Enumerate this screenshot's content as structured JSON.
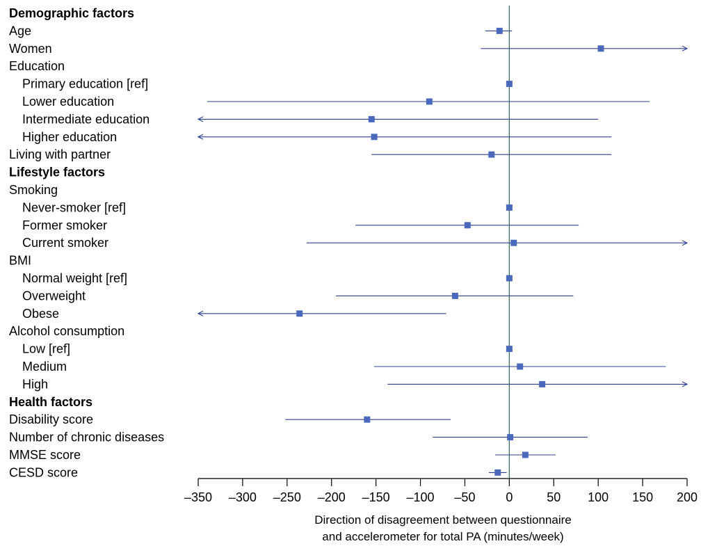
{
  "chart_data": {
    "type": "forest",
    "xlabel_line1": "Direction of disagreement between questionnaire",
    "xlabel_line2": "and accelerometer for total PA (minutes/week)",
    "xlim": [
      -350,
      200
    ],
    "xticks": [
      -350,
      -300,
      -250,
      -200,
      -150,
      -100,
      -50,
      0,
      50,
      100,
      150,
      200
    ],
    "xtick_labels": [
      "–350",
      "–300",
      "–250",
      "–200",
      "–150",
      "–100",
      "–50",
      "0",
      "50",
      "100",
      "150",
      "200"
    ],
    "colors": {
      "marker": "#4a69bd",
      "ci_line": "#2b3f8f",
      "zero_line": "#3d6b5c",
      "axis": "#000000"
    },
    "rows": [
      {
        "label": "Demographic factors",
        "header": true
      },
      {
        "label": "Age",
        "indent": 0,
        "est": -11,
        "lo": -27,
        "hi": 3
      },
      {
        "label": "Women",
        "indent": 0,
        "est": 103,
        "lo": -32,
        "hi": 200,
        "hi_arrow": true
      },
      {
        "label": "Education",
        "indent": 0
      },
      {
        "label": "Primary education [ref]",
        "indent": 1,
        "est": 0,
        "lo": null,
        "hi": null
      },
      {
        "label": "Lower education",
        "indent": 1,
        "est": -90,
        "lo": -340,
        "hi": 158
      },
      {
        "label": "Intermediate education",
        "indent": 1,
        "est": -155,
        "lo": -350,
        "hi": 100,
        "lo_arrow": true
      },
      {
        "label": "Higher education",
        "indent": 1,
        "est": -152,
        "lo": -350,
        "hi": 115,
        "lo_arrow": true
      },
      {
        "label": "Living with partner",
        "indent": 0,
        "est": -20,
        "lo": -155,
        "hi": 115
      },
      {
        "label": "Lifestyle factors",
        "header": true
      },
      {
        "label": "Smoking",
        "indent": 0
      },
      {
        "label": "Never-smoker [ref]",
        "indent": 1,
        "est": 0,
        "lo": null,
        "hi": null
      },
      {
        "label": "Former smoker",
        "indent": 1,
        "est": -47,
        "lo": -173,
        "hi": 78
      },
      {
        "label": "Current smoker",
        "indent": 1,
        "est": 5,
        "lo": -228,
        "hi": 200,
        "hi_arrow": true
      },
      {
        "label": "BMI",
        "indent": 0
      },
      {
        "label": "Normal weight [ref]",
        "indent": 1,
        "est": 0,
        "lo": null,
        "hi": null
      },
      {
        "label": "Overweight",
        "indent": 1,
        "est": -61,
        "lo": -195,
        "hi": 72
      },
      {
        "label": "Obese",
        "indent": 1,
        "est": -236,
        "lo": -350,
        "hi": -71,
        "lo_arrow": true
      },
      {
        "label": "Alcohol consumption",
        "indent": 0
      },
      {
        "label": "Low [ref]",
        "indent": 1,
        "est": 0,
        "lo": null,
        "hi": null
      },
      {
        "label": "Medium",
        "indent": 1,
        "est": 12,
        "lo": -152,
        "hi": 176
      },
      {
        "label": "High",
        "indent": 1,
        "est": 37,
        "lo": -137,
        "hi": 200,
        "hi_arrow": true
      },
      {
        "label": "Health factors",
        "header": true
      },
      {
        "label": "Disability score",
        "indent": 0,
        "est": -160,
        "lo": -252,
        "hi": -66
      },
      {
        "label": "Number of chronic diseases",
        "indent": 0,
        "est": 1,
        "lo": -86,
        "hi": 88
      },
      {
        "label": "MMSE score",
        "indent": 0,
        "est": 18,
        "lo": -16,
        "hi": 52
      },
      {
        "label": "CESD score",
        "indent": 0,
        "est": -13,
        "lo": -23,
        "hi": -3
      }
    ]
  }
}
